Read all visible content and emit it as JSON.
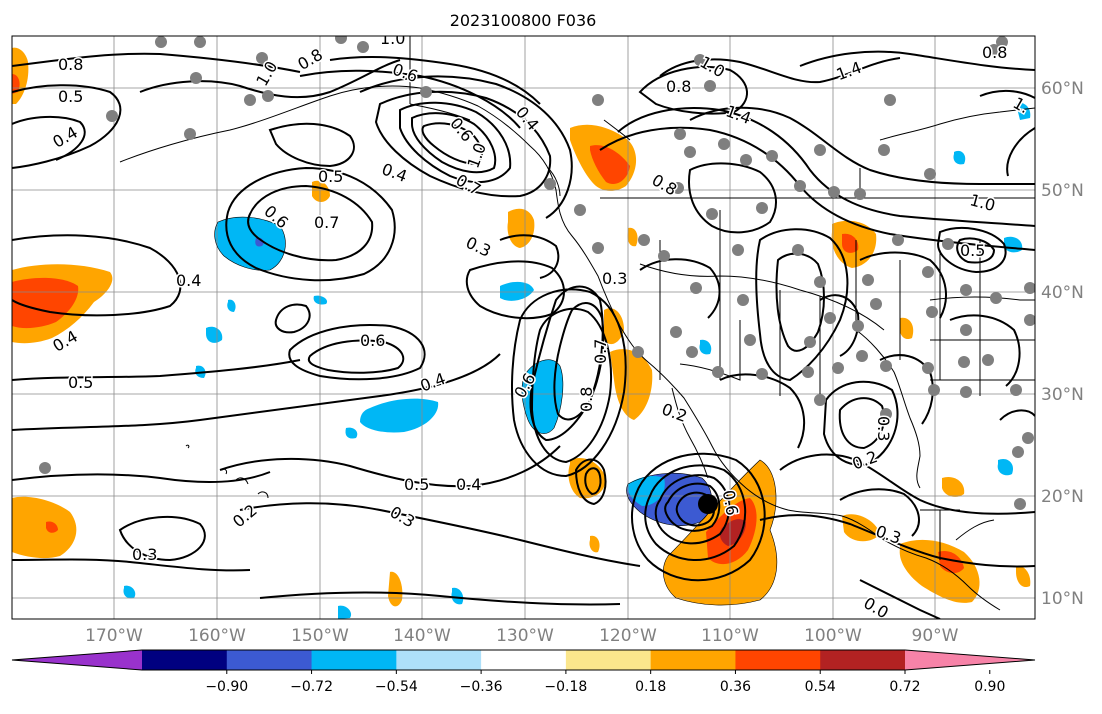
{
  "title": "2023100800 F036",
  "lat_labels": [
    "60°N",
    "50°N",
    "40°N",
    "30°N",
    "20°N",
    "10°N"
  ],
  "lon_labels": [
    "170°W",
    "160°W",
    "150°W",
    "140°W",
    "130°W",
    "120°W",
    "110°W",
    "100°W",
    "90°W"
  ],
  "colorbar": {
    "colors": [
      "#9932CC",
      "#000080",
      "#3C5AD2",
      "#00B7F5",
      "#AEE0FA",
      "#FFFFFF",
      "#FBE68C",
      "#FFA500",
      "#FF4500",
      "#B22222",
      "#F783A8"
    ],
    "ticks": [
      "−0.90",
      "−0.72",
      "−0.54",
      "−0.36",
      "−0.18",
      "0.18",
      "0.36",
      "0.54",
      "0.72",
      "0.90"
    ]
  },
  "contour_labels": [
    "0.8",
    "0.5",
    "0.4",
    "1.0",
    "0.8",
    "0.6",
    "1.0",
    "0.8",
    "1.4",
    "1.0",
    "0.8",
    "1.",
    "0.4",
    "0.6",
    "1.0",
    "0.7",
    "0.4",
    "0.5",
    "0.6",
    "0.7",
    "0.3",
    "1.4",
    "0.8",
    "1.0",
    "0.5",
    "0.4",
    "0.4",
    "0.3",
    "0.6",
    "0.5",
    "0.4",
    "0.6",
    "0.7",
    "0.8",
    "0.2",
    "0.5",
    "0.4",
    "0.3",
    "0.3",
    "0.2",
    "0.3",
    "0.2",
    "0.3",
    "0.6",
    "0.0"
  ]
}
